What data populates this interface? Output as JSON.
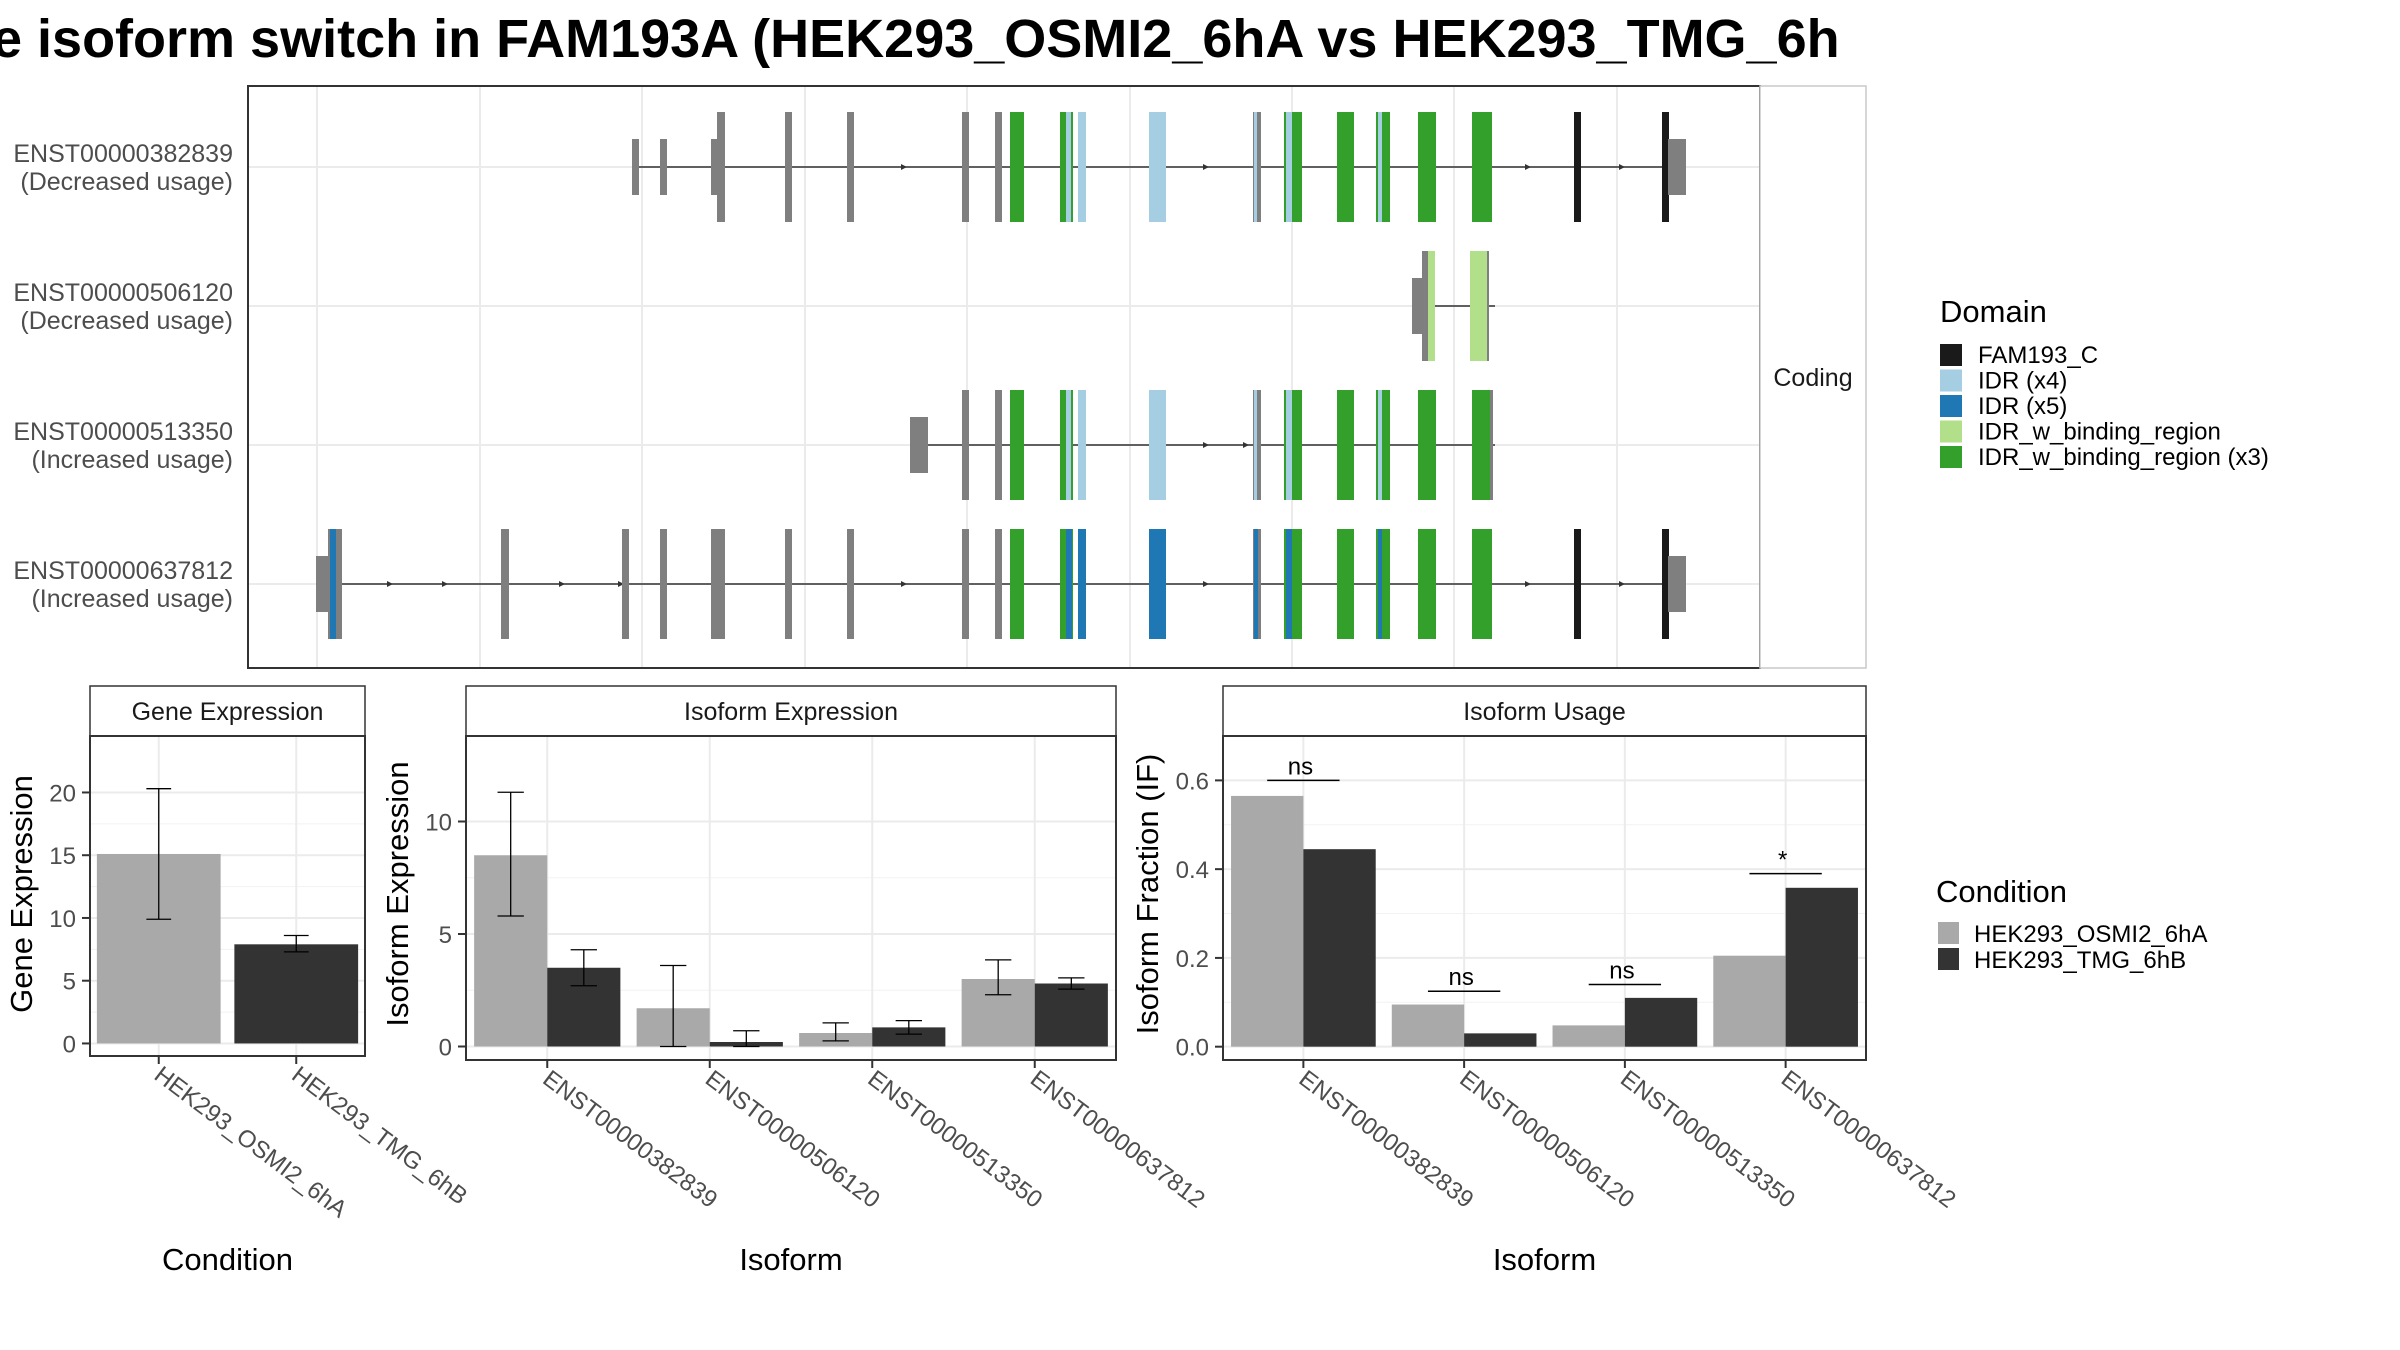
{
  "title": "e isoform switch in FAM193A (HEK293_OSMI2_6hA vs HEK293_TMG_6h",
  "colors": {
    "utr": "#7f7f7f",
    "FAM193_C": "#1a1a1a",
    "IDR_x4": "#a6cee3",
    "IDR_x5": "#1f78b4",
    "IDR_w_binding_region": "#b2df8a",
    "IDR_w_binding_region_x3": "#33a02c",
    "cond_a": "#a9a9a9",
    "cond_b": "#333333"
  },
  "chart_data": [
    {
      "type": "gene-structure",
      "facet_label": "Coding",
      "transcripts": [
        {
          "id": "ENST00000382839",
          "usage": "(Decreased usage)"
        },
        {
          "id": "ENST00000506120",
          "usage": "(Decreased usage)"
        },
        {
          "id": "ENST00000513350",
          "usage": "(Increased usage)"
        },
        {
          "id": "ENST00000637812",
          "usage": "(Increased usage)"
        }
      ],
      "legend": {
        "title": "Domain",
        "entries": [
          {
            "key": "FAM193_C",
            "label": "FAM193_C"
          },
          {
            "key": "IDR_x4",
            "label": "IDR (x4)"
          },
          {
            "key": "IDR_x5",
            "label": "IDR (x5)"
          },
          {
            "key": "IDR_w_binding_region",
            "label": "IDR_w_binding_region"
          },
          {
            "key": "IDR_w_binding_region_x3",
            "label": "IDR_w_binding_region (x3)"
          }
        ]
      }
    },
    {
      "type": "bar",
      "facet_title": "Gene Expression",
      "xlabel": "Condition",
      "ylabel": "Gene Expression",
      "categories": [
        "HEK293_OSMI2_6hA",
        "HEK293_TMG_6hB"
      ],
      "values": [
        15.1,
        7.9
      ],
      "error_low": [
        9.9,
        7.3
      ],
      "error_high": [
        20.3,
        8.6
      ],
      "yticks": [
        0,
        5,
        10,
        15,
        20
      ],
      "ylim": [
        -1,
        24.5
      ]
    },
    {
      "type": "bar",
      "facet_title": "Isoform Expression",
      "xlabel": "Isoform",
      "ylabel": "Isoform Expression",
      "categories": [
        "ENST00000382839",
        "ENST00000506120",
        "ENST00000513350",
        "ENST00000637812"
      ],
      "series": [
        {
          "name": "HEK293_OSMI2_6hA",
          "values": [
            8.5,
            1.7,
            0.6,
            3.0
          ],
          "error_low": [
            5.8,
            0.0,
            0.25,
            2.3
          ],
          "error_high": [
            11.3,
            3.6,
            1.05,
            3.85
          ]
        },
        {
          "name": "HEK293_TMG_6hB",
          "values": [
            3.5,
            0.2,
            0.85,
            2.8
          ],
          "error_low": [
            2.7,
            0.0,
            0.55,
            2.55
          ],
          "error_high": [
            4.3,
            0.7,
            1.15,
            3.05
          ]
        }
      ],
      "yticks": [
        0,
        5,
        10
      ],
      "ylim": [
        -0.6,
        13.8
      ]
    },
    {
      "type": "bar",
      "facet_title": "Isoform Usage",
      "xlabel": "Isoform",
      "ylabel": "Isoform Fraction (IF)",
      "categories": [
        "ENST00000382839",
        "ENST00000506120",
        "ENST00000513350",
        "ENST00000637812"
      ],
      "series": [
        {
          "name": "HEK293_OSMI2_6hA",
          "values": [
            0.565,
            0.095,
            0.048,
            0.205
          ]
        },
        {
          "name": "HEK293_TMG_6hB",
          "values": [
            0.445,
            0.03,
            0.11,
            0.358
          ]
        }
      ],
      "significance": [
        "ns",
        "ns",
        "ns",
        "*"
      ],
      "sig_levels": [
        0.6,
        0.125,
        0.14,
        0.39
      ],
      "ytick_labels": [
        "0.0",
        "0.2",
        "0.4",
        "0.6"
      ],
      "yticks": [
        0,
        0.2,
        0.4,
        0.6
      ],
      "ylim": [
        -0.03,
        0.7
      ]
    }
  ],
  "condition_legend": {
    "title": "Condition",
    "entries": [
      "HEK293_OSMI2_6hA",
      "HEK293_TMG_6hB"
    ]
  }
}
